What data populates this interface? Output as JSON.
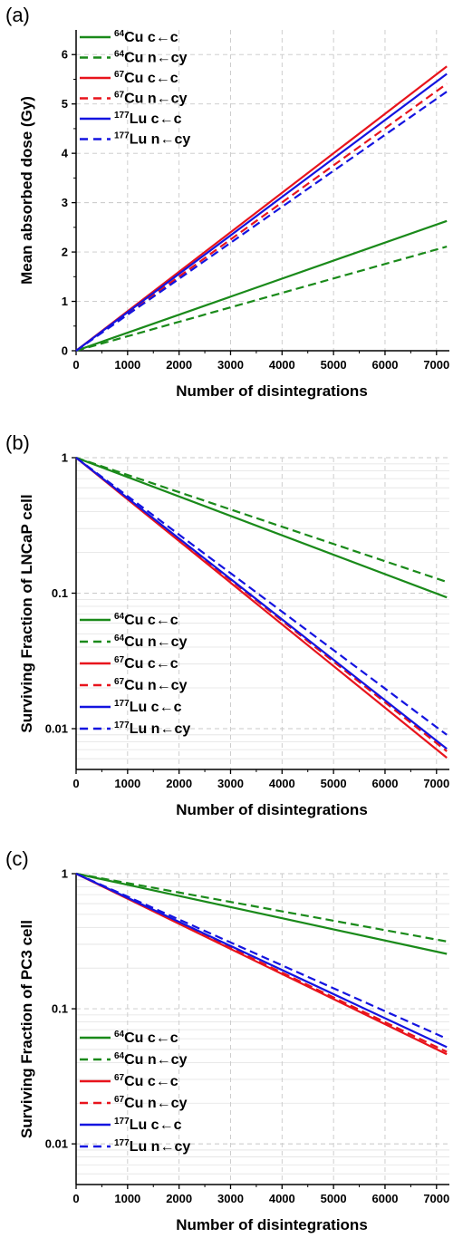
{
  "chart_data": [
    {
      "panel": "(a)",
      "type": "line",
      "xlabel": "Number of disintegrations",
      "ylabel": "Mean absorbed dose (Gy)",
      "xscale": "linear",
      "yscale": "linear",
      "xlim": [
        0,
        7250
      ],
      "ylim": [
        0,
        6.5
      ],
      "xticks": [
        0,
        1000,
        2000,
        3000,
        4000,
        5000,
        6000,
        7000
      ],
      "yticks": [
        0,
        1,
        2,
        3,
        4,
        5,
        6
      ],
      "ytick_labels": [
        "0",
        "1",
        "2",
        "3",
        "4",
        "5",
        "6"
      ],
      "grid": true,
      "legend_position": "top-left",
      "series": [
        {
          "name_sup": "64",
          "name_main": "Cu c←c",
          "color": "#1a8a1a",
          "dash": "solid",
          "x": [
            0,
            7200
          ],
          "y": [
            0,
            2.63
          ]
        },
        {
          "name_sup": "64",
          "name_main": "Cu n←cy",
          "color": "#1a8a1a",
          "dash": "dashed",
          "x": [
            0,
            7200
          ],
          "y": [
            0,
            2.11
          ]
        },
        {
          "name_sup": "67",
          "name_main": "Cu c←c",
          "color": "#e8141c",
          "dash": "solid",
          "x": [
            0,
            7200
          ],
          "y": [
            0,
            5.76
          ]
        },
        {
          "name_sup": "67",
          "name_main": "Cu n←cy",
          "color": "#e8141c",
          "dash": "dashed",
          "x": [
            0,
            7200
          ],
          "y": [
            0,
            5.41
          ]
        },
        {
          "name_sup": "177",
          "name_main": "Lu c←c",
          "color": "#1414e0",
          "dash": "solid",
          "x": [
            0,
            7200
          ],
          "y": [
            0,
            5.61
          ]
        },
        {
          "name_sup": "177",
          "name_main": "Lu n←cy",
          "color": "#1414e0",
          "dash": "dashed",
          "x": [
            0,
            7200
          ],
          "y": [
            0,
            5.25
          ]
        }
      ]
    },
    {
      "panel": "(b)",
      "type": "line",
      "xlabel": "Number of disintegrations",
      "ylabel": "Surviving Fraction of LNCaP cell",
      "xscale": "linear",
      "yscale": "log",
      "xlim": [
        0,
        7250
      ],
      "ylim": [
        0.005,
        1
      ],
      "xticks": [
        0,
        1000,
        2000,
        3000,
        4000,
        5000,
        6000,
        7000
      ],
      "yticks": [
        0.01,
        0.1,
        1
      ],
      "ytick_labels": [
        "0.01",
        "0.1",
        "1"
      ],
      "grid": true,
      "legend_position": "bottom-left",
      "series": [
        {
          "name_sup": "64",
          "name_main": "Cu c←c",
          "color": "#1a8a1a",
          "dash": "solid",
          "x": [
            0,
            7200
          ],
          "y": [
            1,
            0.093
          ]
        },
        {
          "name_sup": "64",
          "name_main": "Cu n←cy",
          "color": "#1a8a1a",
          "dash": "dashed",
          "x": [
            0,
            7200
          ],
          "y": [
            1,
            0.121
          ]
        },
        {
          "name_sup": "67",
          "name_main": "Cu c←c",
          "color": "#e8141c",
          "dash": "solid",
          "x": [
            0,
            7200
          ],
          "y": [
            1,
            0.0061
          ]
        },
        {
          "name_sup": "67",
          "name_main": "Cu n←cy",
          "color": "#e8141c",
          "dash": "dashed",
          "x": [
            0,
            7200
          ],
          "y": [
            1,
            0.0068
          ]
        },
        {
          "name_sup": "177",
          "name_main": "Lu c←c",
          "color": "#1414e0",
          "dash": "solid",
          "x": [
            0,
            7200
          ],
          "y": [
            1,
            0.0071
          ]
        },
        {
          "name_sup": "177",
          "name_main": "Lu n←cy",
          "color": "#1414e0",
          "dash": "dashed",
          "x": [
            0,
            7200
          ],
          "y": [
            1,
            0.009
          ]
        }
      ]
    },
    {
      "panel": "(c)",
      "type": "line",
      "xlabel": "Number of disintegrations",
      "ylabel": "Surviving Fraction of PC3 cell",
      "xscale": "linear",
      "yscale": "log",
      "xlim": [
        0,
        7250
      ],
      "ylim": [
        0.005,
        1
      ],
      "xticks": [
        0,
        1000,
        2000,
        3000,
        4000,
        5000,
        6000,
        7000
      ],
      "yticks": [
        0.01,
        0.1,
        1
      ],
      "ytick_labels": [
        "0.01",
        "0.1",
        "1"
      ],
      "grid": true,
      "legend_position": "bottom-left",
      "series": [
        {
          "name_sup": "64",
          "name_main": "Cu c←c",
          "color": "#1a8a1a",
          "dash": "solid",
          "x": [
            0,
            7200
          ],
          "y": [
            1,
            0.255
          ]
        },
        {
          "name_sup": "64",
          "name_main": "Cu n←cy",
          "color": "#1a8a1a",
          "dash": "dashed",
          "x": [
            0,
            7200
          ],
          "y": [
            1,
            0.315
          ]
        },
        {
          "name_sup": "67",
          "name_main": "Cu c←c",
          "color": "#e8141c",
          "dash": "solid",
          "x": [
            0,
            7200
          ],
          "y": [
            1,
            0.046
          ]
        },
        {
          "name_sup": "67",
          "name_main": "Cu n←cy",
          "color": "#e8141c",
          "dash": "dashed",
          "x": [
            0,
            7200
          ],
          "y": [
            1,
            0.048
          ]
        },
        {
          "name_sup": "177",
          "name_main": "Lu c←c",
          "color": "#1414e0",
          "dash": "solid",
          "x": [
            0,
            7200
          ],
          "y": [
            1,
            0.052
          ]
        },
        {
          "name_sup": "177",
          "name_main": "Lu n←cy",
          "color": "#1414e0",
          "dash": "dashed",
          "x": [
            0,
            7200
          ],
          "y": [
            1,
            0.06
          ]
        }
      ]
    }
  ]
}
